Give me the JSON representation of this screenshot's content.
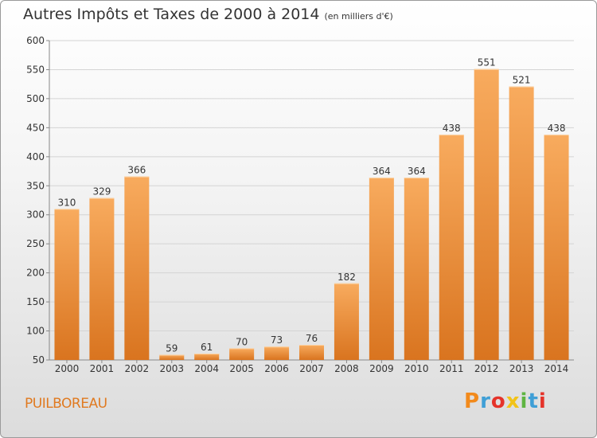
{
  "header": {
    "title": "Autres Impôts et Taxes de 2000 à 2014",
    "unit": "(en milliers d'€)"
  },
  "footer": {
    "commune": "PUILBOREAU",
    "logo": "Proxiti",
    "logo_colors": [
      "#f28a1c",
      "#3f9fd6",
      "#e5332a",
      "#f2c318",
      "#5fb542",
      "#3f9fd6",
      "#e5332a"
    ]
  },
  "colors": {
    "bar_light": "#f8ab5e",
    "bar_dark": "#d9741f",
    "grid": "#d4d4d4",
    "axis_text": "#333333",
    "commune_text": "#e07a20"
  },
  "chart_data": {
    "type": "bar",
    "title": "Autres Impôts et Taxes de 2000 à 2014",
    "subtitle": "(en milliers d'€)",
    "xlabel": "",
    "ylabel": "",
    "categories": [
      "2000",
      "2001",
      "2002",
      "2003",
      "2004",
      "2005",
      "2006",
      "2007",
      "2008",
      "2009",
      "2010",
      "2011",
      "2012",
      "2013",
      "2014"
    ],
    "values": [
      310,
      329,
      366,
      59,
      61,
      70,
      73,
      76,
      182,
      364,
      364,
      438,
      551,
      521,
      438
    ],
    "ylim": [
      50,
      600
    ],
    "yticks": [
      50,
      100,
      150,
      200,
      250,
      300,
      350,
      400,
      450,
      500,
      550,
      600
    ],
    "grid": true,
    "legend": "none"
  }
}
